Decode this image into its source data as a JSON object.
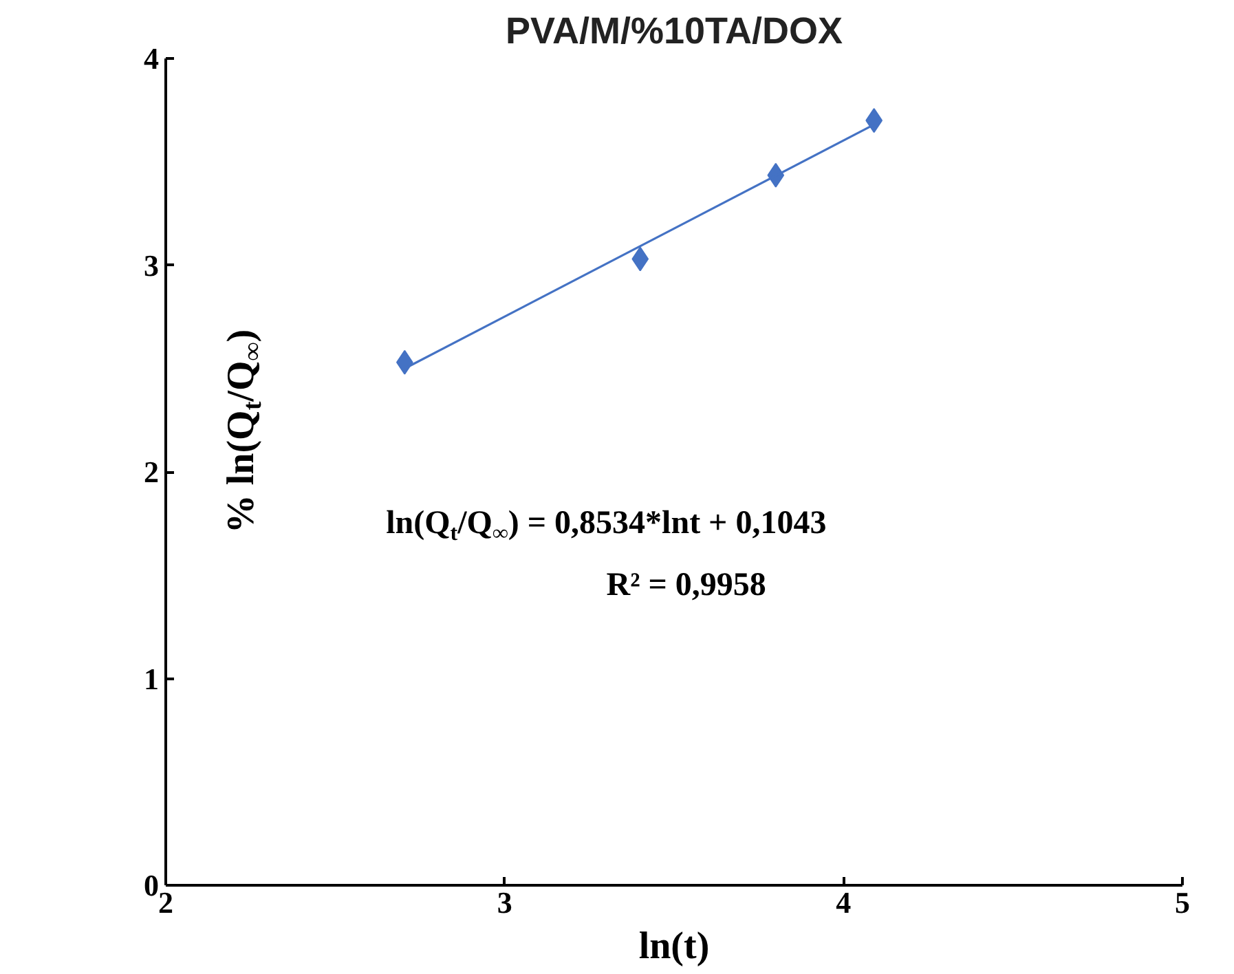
{
  "chart_data": {
    "type": "scatter",
    "title": "PVA/M/%10TA/DOX",
    "xlabel": "ln(t)",
    "ylabel": "% ln(Q$_{t}$/Q$_{∞}$)",
    "xlim": [
      2,
      5
    ],
    "xticks": [
      2,
      3,
      4,
      5
    ],
    "ylim": [
      0,
      4
    ],
    "yticks": [
      0,
      1,
      2,
      3,
      4
    ],
    "grid": false,
    "series": [
      {
        "color": "#4472c4",
        "marker": "diamond",
        "x": [
          2.705,
          3.4,
          3.8,
          4.09
        ],
        "values": [
          2.53,
          3.03,
          3.435,
          3.7
        ]
      },
      {
        "type": "line",
        "color": "#4472c4",
        "x": [
          2.705,
          4.09
        ],
        "values": [
          2.5,
          3.68
        ]
      }
    ],
    "annotations": [
      "ln(Q$_{t}$/Q$_{∞}$)    = 0,8534*lnt + 0,1043",
      "R² = 0,9958"
    ]
  }
}
